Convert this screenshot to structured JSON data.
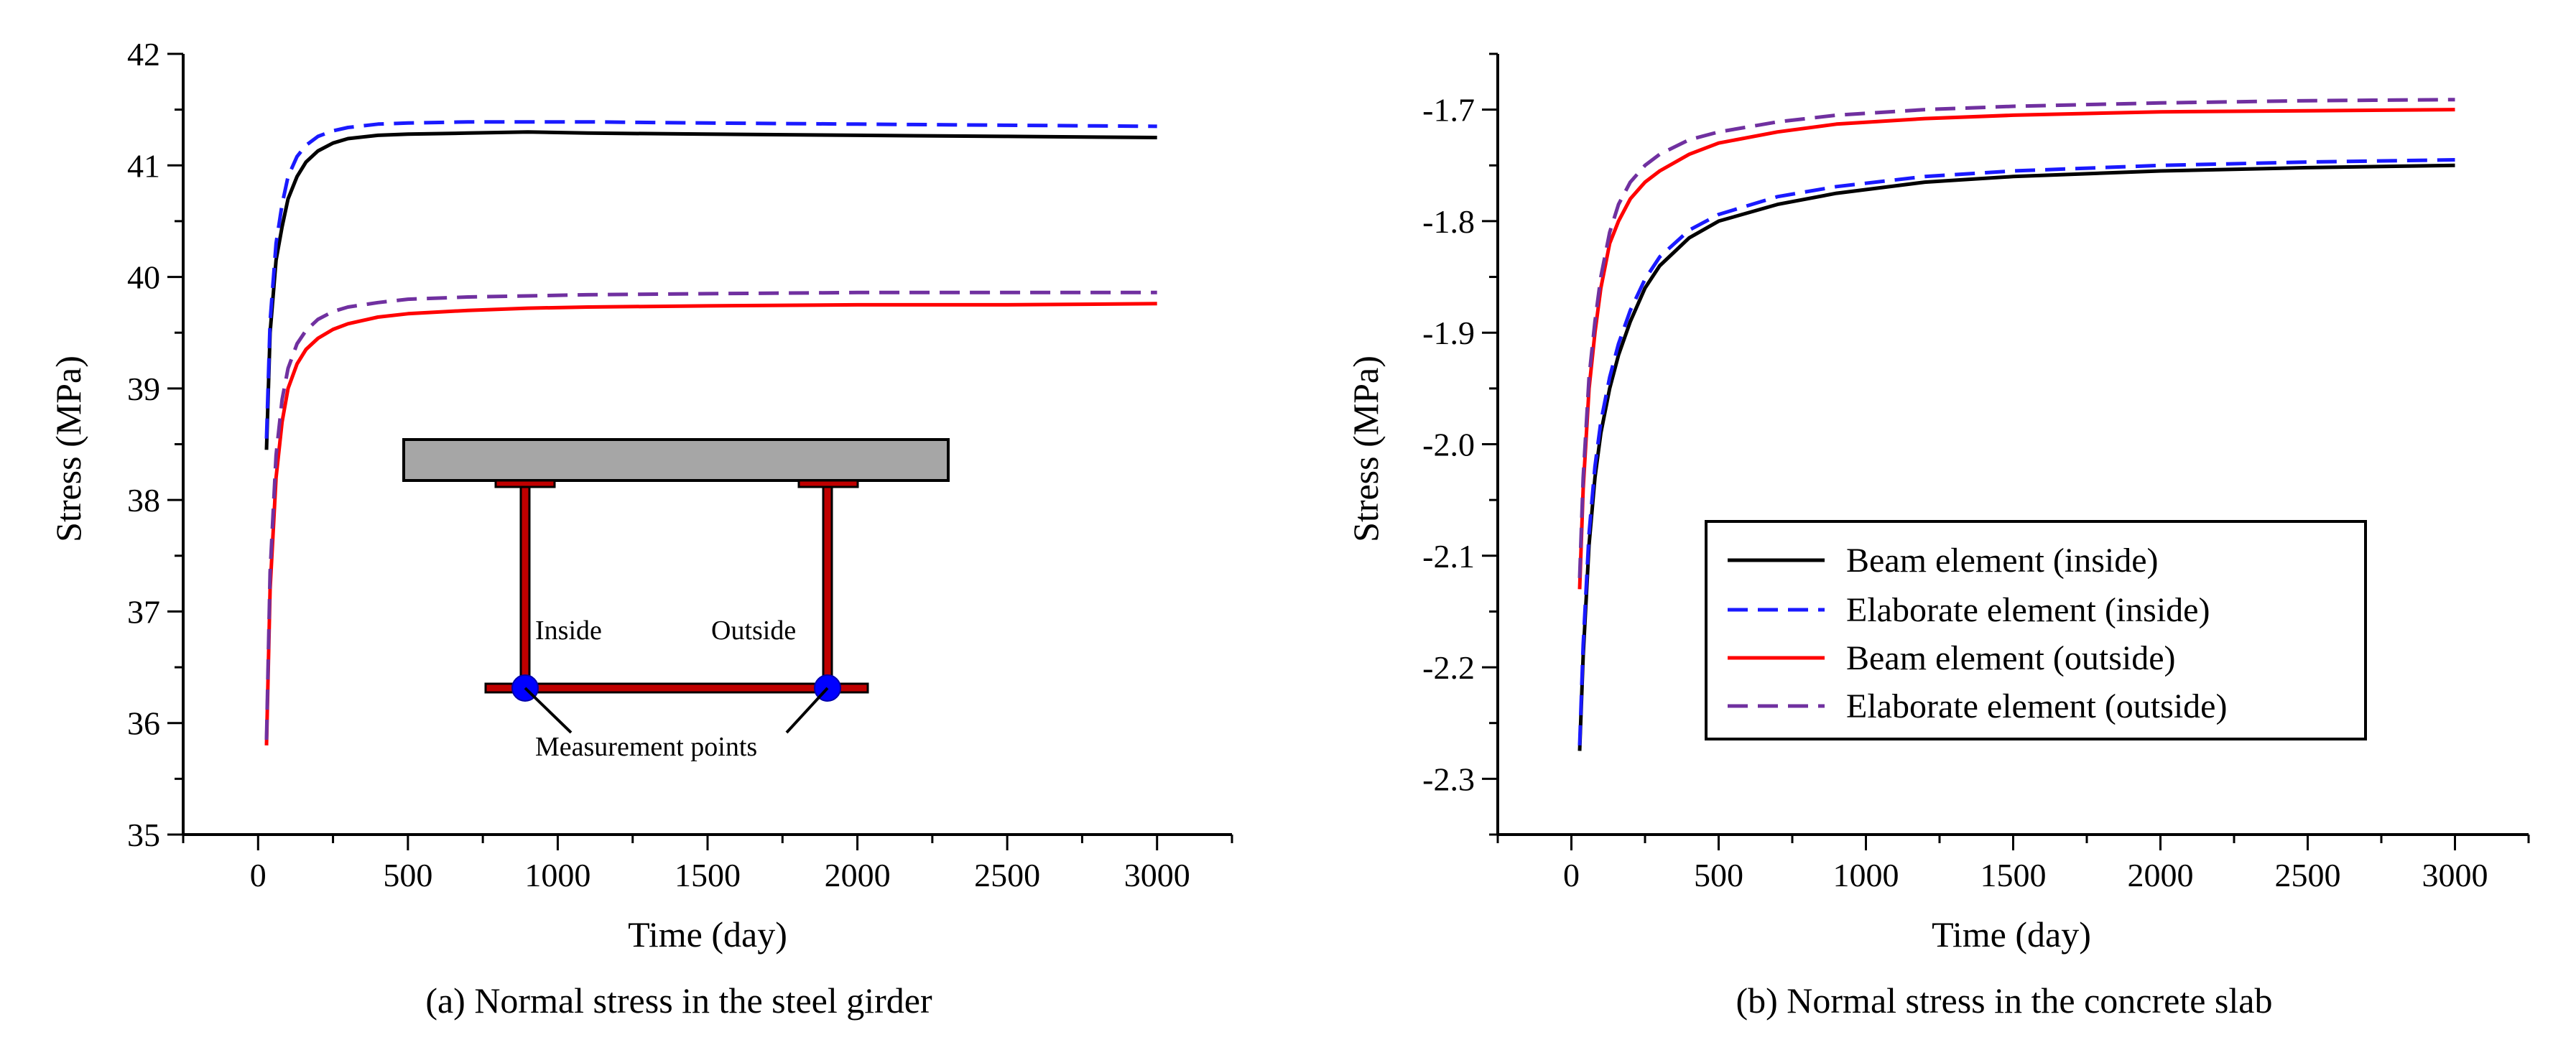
{
  "chart_data": [
    {
      "id": "a",
      "type": "line",
      "title": "(a) Normal stress in the steel girder",
      "xlabel": "Time (day)",
      "ylabel": "Stress (MPa)",
      "xlim": [
        -250,
        3250
      ],
      "ylim": [
        35,
        42
      ],
      "xticks": [
        0,
        500,
        1000,
        1500,
        2000,
        2500,
        3000
      ],
      "yticks": [
        35,
        36,
        37,
        38,
        39,
        40,
        41,
        42
      ],
      "series": [
        {
          "name": "Beam element (inside)",
          "color": "#000000",
          "dash": "solid",
          "x": [
            28,
            40,
            60,
            80,
            100,
            130,
            160,
            200,
            250,
            300,
            400,
            500,
            700,
            900,
            1100,
            1500,
            2000,
            2500,
            3000
          ],
          "y": [
            38.45,
            39.5,
            40.15,
            40.45,
            40.7,
            40.9,
            41.03,
            41.13,
            41.2,
            41.24,
            41.27,
            41.28,
            41.29,
            41.3,
            41.29,
            41.28,
            41.27,
            41.26,
            41.25
          ]
        },
        {
          "name": "Elaborate element (inside)",
          "color": "#1a1aff",
          "dash": "dashed",
          "x": [
            28,
            40,
            60,
            80,
            100,
            130,
            160,
            200,
            250,
            300,
            400,
            500,
            700,
            900,
            1100,
            1500,
            2000,
            2500,
            3000
          ],
          "y": [
            38.55,
            39.6,
            40.3,
            40.65,
            40.9,
            41.08,
            41.18,
            41.26,
            41.31,
            41.34,
            41.37,
            41.38,
            41.39,
            41.39,
            41.39,
            41.38,
            41.37,
            41.36,
            41.35
          ]
        },
        {
          "name": "Beam element (outside)",
          "color": "#ff0000",
          "dash": "solid",
          "x": [
            28,
            40,
            60,
            80,
            100,
            130,
            160,
            200,
            250,
            300,
            400,
            500,
            700,
            900,
            1100,
            1500,
            2000,
            2500,
            3000
          ],
          "y": [
            35.8,
            37.2,
            38.2,
            38.7,
            39.0,
            39.22,
            39.35,
            39.45,
            39.53,
            39.58,
            39.64,
            39.67,
            39.7,
            39.72,
            39.73,
            39.74,
            39.75,
            39.75,
            39.76
          ]
        },
        {
          "name": "Elaborate element (outside)",
          "color": "#7030a0",
          "dash": "dashed",
          "x": [
            28,
            40,
            60,
            80,
            100,
            130,
            160,
            200,
            250,
            300,
            400,
            500,
            700,
            900,
            1100,
            1500,
            2000,
            2500,
            3000
          ],
          "y": [
            35.85,
            37.35,
            38.4,
            38.9,
            39.18,
            39.4,
            39.52,
            39.62,
            39.69,
            39.73,
            39.77,
            39.8,
            39.82,
            39.83,
            39.84,
            39.85,
            39.86,
            39.86,
            39.86
          ]
        }
      ],
      "annotations": {
        "inside_label": "Inside",
        "outside_label": "Outside",
        "points_label": "Measurement points"
      }
    },
    {
      "id": "b",
      "type": "line",
      "title": "(b) Normal stress in the concrete slab",
      "xlabel": "Time (day)",
      "ylabel": "Stress (MPa)",
      "xlim": [
        -250,
        3250
      ],
      "ylim": [
        -2.35,
        -1.65
      ],
      "xticks": [
        0,
        500,
        1000,
        1500,
        2000,
        2500,
        3000
      ],
      "yticks": [
        -2.3,
        -2.2,
        -2.1,
        -2.0,
        -1.9,
        -1.8,
        -1.7
      ],
      "ytick_labels": [
        "-2.3",
        "-2.2",
        "-2.1",
        "-2.0",
        "-1.9",
        "-1.8",
        "-1.7"
      ],
      "legend_position": "center-right",
      "series": [
        {
          "name": "Beam element (inside)",
          "color": "#000000",
          "dash": "solid",
          "x": [
            28,
            40,
            60,
            80,
            100,
            130,
            160,
            200,
            250,
            300,
            400,
            500,
            700,
            900,
            1200,
            1500,
            2000,
            2500,
            3000
          ],
          "y": [
            -2.275,
            -2.19,
            -2.09,
            -2.03,
            -1.99,
            -1.95,
            -1.92,
            -1.89,
            -1.86,
            -1.84,
            -1.815,
            -1.8,
            -1.785,
            -1.775,
            -1.765,
            -1.76,
            -1.755,
            -1.752,
            -1.75
          ]
        },
        {
          "name": "Elaborate element (inside)",
          "color": "#1a1aff",
          "dash": "dashed",
          "x": [
            28,
            40,
            60,
            80,
            100,
            130,
            160,
            200,
            250,
            300,
            400,
            500,
            700,
            900,
            1200,
            1500,
            2000,
            2500,
            3000
          ],
          "y": [
            -2.27,
            -2.18,
            -2.08,
            -2.02,
            -1.98,
            -1.94,
            -1.91,
            -1.88,
            -1.852,
            -1.832,
            -1.808,
            -1.794,
            -1.778,
            -1.769,
            -1.76,
            -1.755,
            -1.75,
            -1.747,
            -1.745
          ]
        },
        {
          "name": "Beam element (outside)",
          "color": "#ff0000",
          "dash": "solid",
          "x": [
            28,
            40,
            60,
            80,
            100,
            130,
            160,
            200,
            250,
            300,
            400,
            500,
            700,
            900,
            1200,
            1500,
            2000,
            2500,
            3000
          ],
          "y": [
            -2.13,
            -2.04,
            -1.95,
            -1.9,
            -1.86,
            -1.82,
            -1.8,
            -1.78,
            -1.765,
            -1.755,
            -1.74,
            -1.73,
            -1.72,
            -1.713,
            -1.708,
            -1.705,
            -1.702,
            -1.701,
            -1.7
          ]
        },
        {
          "name": "Elaborate element (outside)",
          "color": "#7030a0",
          "dash": "dashed",
          "x": [
            28,
            40,
            60,
            80,
            100,
            130,
            160,
            200,
            250,
            300,
            400,
            500,
            700,
            900,
            1200,
            1500,
            2000,
            2500,
            3000
          ],
          "y": [
            -2.12,
            -2.03,
            -1.94,
            -1.89,
            -1.85,
            -1.81,
            -1.785,
            -1.765,
            -1.75,
            -1.74,
            -1.727,
            -1.72,
            -1.711,
            -1.705,
            -1.7,
            -1.697,
            -1.694,
            -1.692,
            -1.691
          ]
        }
      ]
    }
  ]
}
